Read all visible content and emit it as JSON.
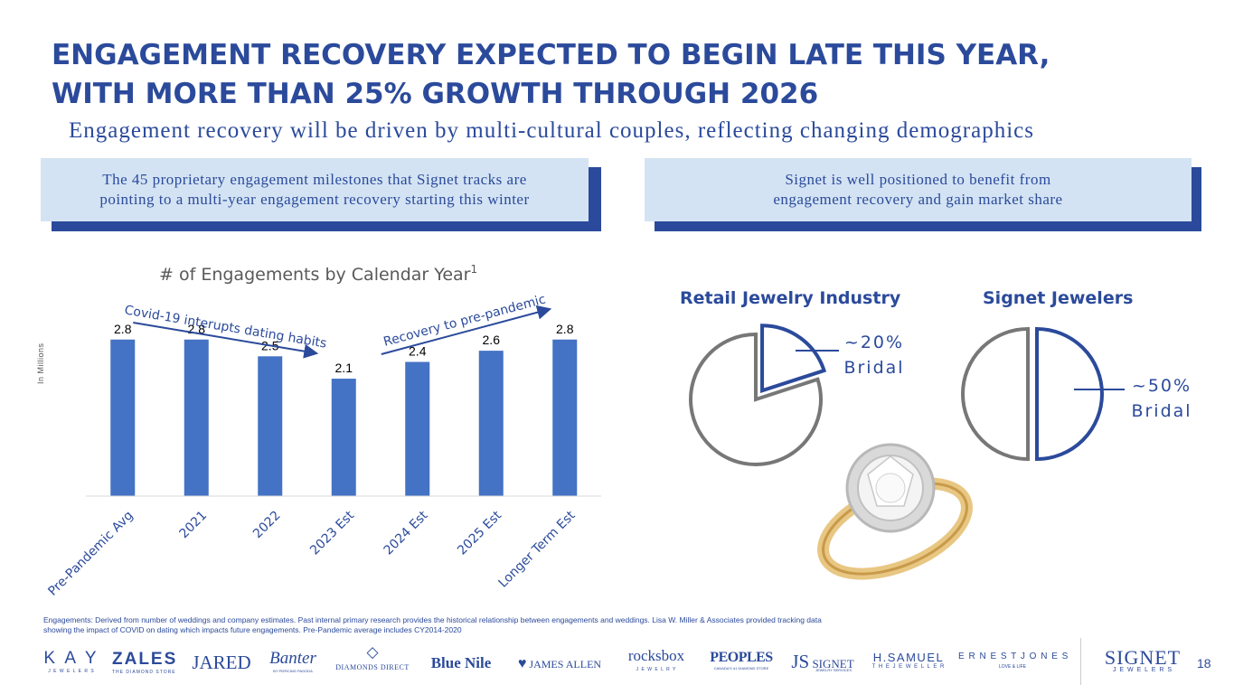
{
  "title": {
    "line1": "ENGAGEMENT RECOVERY EXPECTED TO BEGIN LATE THIS YEAR,",
    "line2": "WITH MORE THAN 25% GROWTH THROUGH 2026"
  },
  "subtitle": "Engagement recovery will be driven by multi-cultural couples, reflecting changing demographics",
  "callouts": {
    "left": {
      "line1": "The 45 proprietary engagement milestones that Signet tracks are",
      "line2": "pointing to a multi-year engagement recovery starting this winter"
    },
    "right": {
      "line1": "Signet is well positioned to benefit from",
      "line2": "engagement recovery and gain market share"
    }
  },
  "colors": {
    "brand": "#2b4a9b",
    "bar": "#4472c4",
    "callout_bg": "#d3e3f3",
    "pie_gray": "#777777"
  },
  "chart_data": [
    {
      "type": "bar",
      "title": "# of Engagements by Calendar Year",
      "title_superscript": "1",
      "ylabel": "In Millions",
      "xlabel": "",
      "categories": [
        "Pre-Pandemic Avg",
        "2021",
        "2022",
        "2023 Est",
        "2024 Est",
        "2025 Est",
        "Longer Term Est"
      ],
      "values": [
        2.8,
        2.8,
        2.5,
        2.1,
        2.4,
        2.6,
        2.8
      ],
      "value_labels": [
        "2.8",
        "2.8",
        "2.5",
        "2.1",
        "2.4",
        "2.6",
        "2.8"
      ],
      "ylim": [
        0,
        3.2
      ],
      "grid": false,
      "annotations": [
        {
          "text": "Covid-19 interupts dating habits",
          "from_category": "2021",
          "to_category": "2023 Est"
        },
        {
          "text": "Recovery to pre-pandemic",
          "from_category": "2024 Est",
          "to_category": "2025 Est"
        }
      ]
    },
    {
      "type": "pie",
      "title": "Retail Jewelry Industry",
      "slices": [
        {
          "name": "Bridal",
          "value": 20,
          "label": "~20%",
          "sublabel": "Bridal",
          "exploded": true
        },
        {
          "name": "Other",
          "value": 80,
          "label": "",
          "sublabel": "",
          "exploded": false
        }
      ]
    },
    {
      "type": "pie",
      "title": "Signet Jewelers",
      "slices": [
        {
          "name": "Bridal",
          "value": 50,
          "label": "~50%",
          "sublabel": "Bridal",
          "exploded": true
        },
        {
          "name": "Other",
          "value": 50,
          "label": "",
          "sublabel": "",
          "exploded": false
        }
      ]
    }
  ],
  "footnote": "Engagements: Derived from number of weddings and company estimates. Past internal primary research provides the historical relationship between engagements and weddings. Lisa W. Miller & Associates provided tracking data showing the impact of COVID on dating which impacts future engagements. Pre-Pandemic average includes CY2014-2020",
  "logos": {
    "kay": "K A Y",
    "kay_sub": "J E W E L E R S",
    "zales": "ZALES",
    "zales_sub": "THE DIAMOND STORE",
    "jared": "JARED",
    "banter": "Banter",
    "banter_sub": "BY PIERCING PAGODA",
    "diamonds_direct": "DIAMONDS DIRECT",
    "blue_nile": "Blue Nile",
    "james_allen": "JAMES ALLEN",
    "rocksbox": "rocksbox",
    "rocksbox_sub": "J E W E L R Y",
    "peoples": "PEOPLES",
    "peoples_sub": "CANADA'S #1 DIAMOND STORE",
    "js_signet": "SIGNET",
    "js_sub": "JEWELRY SERVICES",
    "hsamuel": "H.SAMUEL",
    "hsamuel_sub": "T H E   J E W E L L E R",
    "ernest_jones": "E R N E S T   J O N E S",
    "ernest_sub": "LOVE & LIFE",
    "signet": "SIGNET",
    "signet_sub": "J E W E L E R S"
  },
  "page_number": "18"
}
